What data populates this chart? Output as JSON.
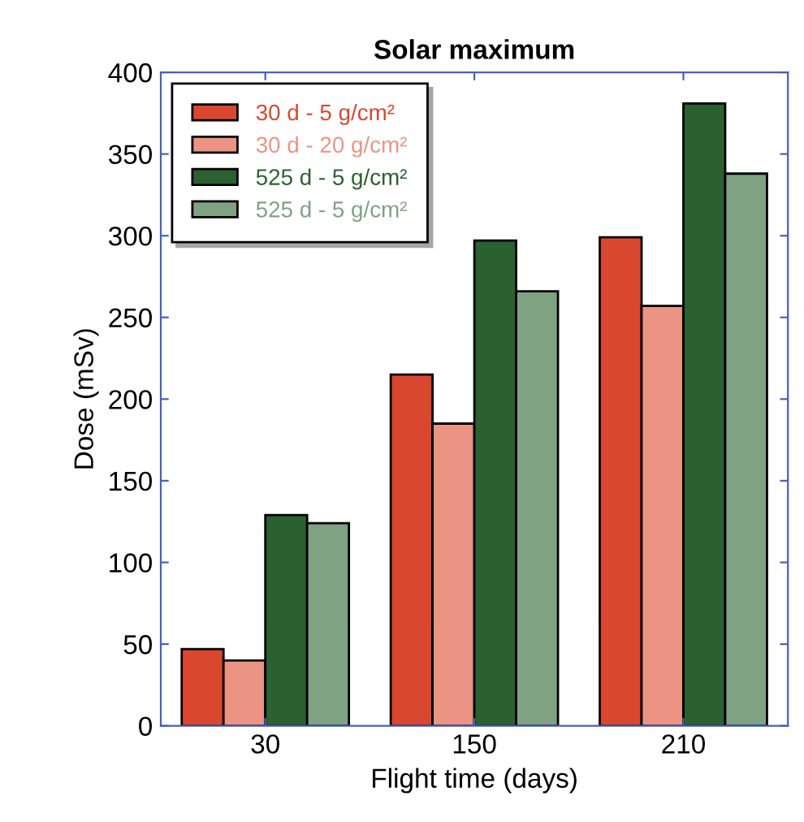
{
  "chart_data": {
    "type": "bar",
    "title": "Solar maximum",
    "xlabel": "Flight time (days)",
    "ylabel": "Dose (mSv)",
    "categories": [
      "30",
      "150",
      "210"
    ],
    "series": [
      {
        "name": "30 d - 5 g/cm²",
        "color": "#d9472f",
        "values": [
          47,
          215,
          299
        ]
      },
      {
        "name": "30 d - 20 g/cm²",
        "color": "#eb9484",
        "values": [
          40,
          185,
          257
        ]
      },
      {
        "name": "525 d - 5 g/cm²",
        "color": "#2b6130",
        "values": [
          129,
          297,
          381
        ]
      },
      {
        "name": "525 d - 5 g/cm²",
        "color": "#7fa283",
        "values": [
          124,
          266,
          338
        ]
      }
    ],
    "ylim": [
      0,
      400
    ],
    "yticks": [
      0,
      50,
      100,
      150,
      200,
      250,
      300,
      350,
      400
    ],
    "grid": false,
    "legend": "top left"
  }
}
